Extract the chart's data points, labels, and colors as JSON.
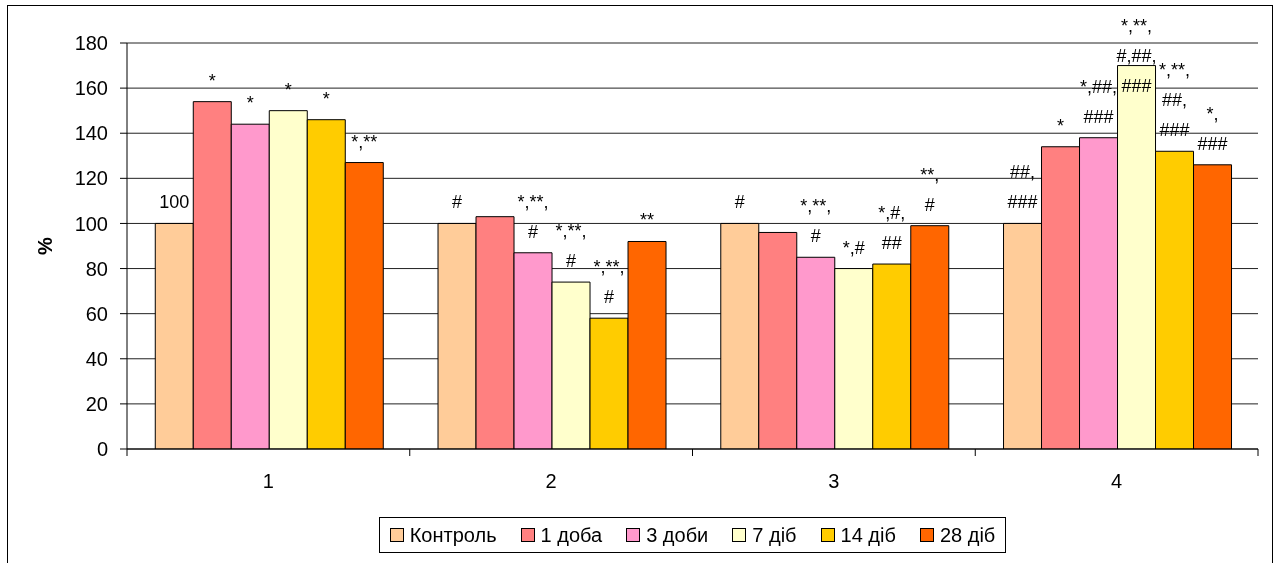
{
  "chart_data": {
    "type": "bar",
    "ylabel": "%",
    "categories": [
      "1",
      "2",
      "3",
      "4"
    ],
    "ylim": [
      0,
      180
    ],
    "yticks": [
      0,
      20,
      40,
      60,
      80,
      100,
      120,
      140,
      160,
      180
    ],
    "grid": "y",
    "legend": "bottom",
    "series": [
      {
        "name": "Контроль",
        "color": "#ffcc99",
        "values": [
          100,
          100,
          100,
          100
        ],
        "value_labels": [
          "100",
          "#",
          "#",
          "##,\n###"
        ]
      },
      {
        "name": "1 доба",
        "color": "#ff8080",
        "values": [
          154,
          103,
          96,
          134
        ],
        "value_labels": [
          "*",
          null,
          null,
          "*"
        ]
      },
      {
        "name": "3 доби",
        "color": "#ff99cc",
        "values": [
          144,
          87,
          85,
          138
        ],
        "value_labels": [
          "*",
          "*,**,\n#",
          "*,**,\n#",
          "*,##,\n###"
        ]
      },
      {
        "name": "7 діб",
        "color": "#ffffcc",
        "values": [
          150,
          74,
          80,
          170
        ],
        "value_labels": [
          "*",
          "*,**,\n#",
          "*,#",
          "*,**,\n#,##,\n###"
        ]
      },
      {
        "name": "14 діб",
        "color": "#ffcc00",
        "values": [
          146,
          58,
          82,
          132
        ],
        "value_labels": [
          "*",
          "*,**,\n#",
          "*,#,\n##",
          "*,**,\n##,\n###"
        ]
      },
      {
        "name": "28 діб",
        "color": "#ff6600",
        "values": [
          127,
          92,
          99,
          126
        ],
        "value_labels": [
          "*,**",
          "**",
          "**,\n#",
          "*,\n###"
        ]
      }
    ]
  }
}
